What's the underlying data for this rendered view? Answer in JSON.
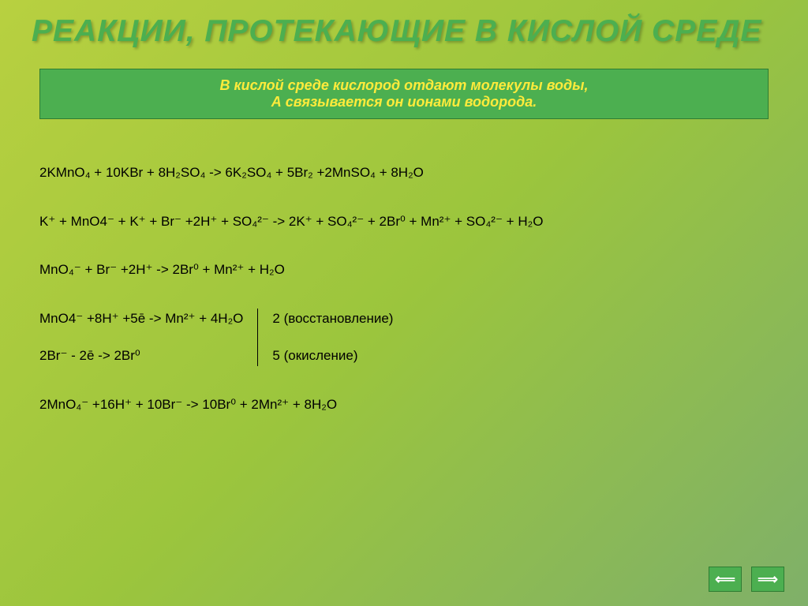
{
  "title": "Реакции, протекающие в кислой среде",
  "info": {
    "line1": "В кислой среде кислород отдают молекулы воды,",
    "line2": "А связывается он ионами водорода."
  },
  "equations": {
    "eq1": "2KMnO₄ + 10KBr + 8H₂SO₄ -> 6K₂SO₄ + 5Br₂ +2MnSO₄ + 8H₂O",
    "eq2": "K⁺ + MnO4⁻  +  K⁺ + Br⁻ +2H⁺ + SO₄²⁻ -> 2K⁺ + SO₄²⁻  + 2Br⁰ + Mn²⁺ + SO₄²⁻ + H₂O",
    "eq3": "MnO₄⁻  + Br⁻ +2H⁺ -> 2Br⁰ + Mn²⁺ + H₂O",
    "half1_left": "MnO4⁻ +8H⁺ +5ē -> Mn²⁺ + 4H₂O",
    "half1_right": "2 (восстановление)",
    "half2_left": "2Br⁻  - 2ē ->  2Br⁰",
    "half2_right": "5 (окисление)",
    "eq_final": "2MnO₄⁻ +16H⁺ + 10Br⁻ -> 10Br⁰ + 2Mn²⁺ + 8H₂O"
  },
  "nav": {
    "prev": "⟸",
    "next": "⟹"
  },
  "colors": {
    "bg_start": "#b8d040",
    "bg_end": "#7fb069",
    "title_color": "#4caf50",
    "box_bg": "#4caf50",
    "box_text": "#ffeb3b",
    "text": "#000000",
    "btn_bg": "#4caf50"
  },
  "typography": {
    "title_fontsize": 39,
    "info_fontsize": 18,
    "eq_fontsize": 17
  }
}
